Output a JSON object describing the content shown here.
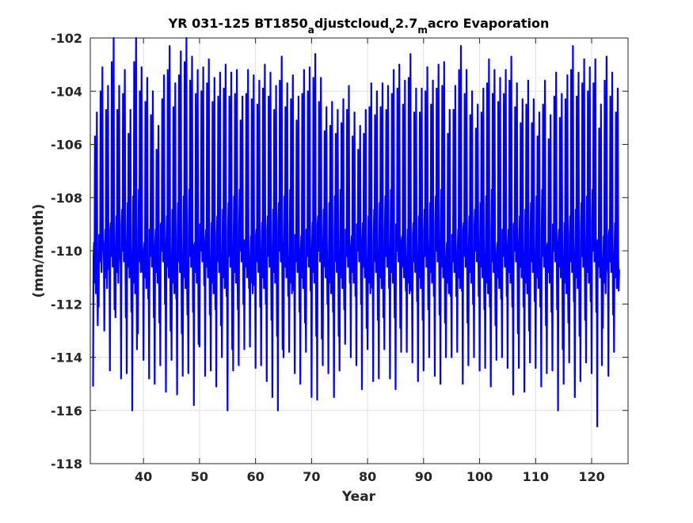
{
  "chart_data": {
    "type": "line",
    "title_parts": [
      {
        "text": "YR 031-125 BT1850",
        "sub": false
      },
      {
        "text": "a",
        "sub": true
      },
      {
        "text": "djustcloud",
        "sub": false
      },
      {
        "text": "v",
        "sub": true
      },
      {
        "text": "2.7",
        "sub": false
      },
      {
        "text": "m",
        "sub": true
      },
      {
        "text": "acro Evaporation",
        "sub": false
      }
    ],
    "xlabel": "Year",
    "ylabel": "(mm/month)",
    "xlim": [
      30.5,
      126.5
    ],
    "ylim": [
      -118,
      -102
    ],
    "xticks": [
      40,
      50,
      60,
      70,
      80,
      90,
      100,
      110,
      120
    ],
    "yticks": [
      -118,
      -116,
      -114,
      -112,
      -110,
      -108,
      -106,
      -104,
      -102
    ],
    "grid": true,
    "line_color": "#0000ff",
    "series": [
      {
        "x_start": 31.0,
        "x_step": 0.083333,
        "cycle_peaks": [
          -105.7,
          -104.0,
          -104.7,
          -102.9,
          -104.7,
          -104.1,
          -105.6,
          -102.9,
          -104.0,
          -104.4,
          -104.9,
          -106.2,
          -104.3,
          -103.2,
          -104.6,
          -103.4,
          -102.9,
          -103.6,
          -104.1,
          -104.0,
          -103.7,
          -104.4,
          -104.2,
          -103.9,
          -104.2,
          -104.1,
          -105.1,
          -104.1,
          -104.3,
          -104.5,
          -103.9,
          -104.2,
          -104.7,
          -103.6,
          -104.6,
          -104.3,
          -105.1,
          -104.1,
          -104.0,
          -103.5,
          -104.4,
          -105.5,
          -105.3,
          -105.6,
          -105.2,
          -104.7,
          -105.7,
          -106.2,
          -105.6,
          -104.6,
          -104.9,
          -104.6,
          -104.7,
          -104.1,
          -103.9,
          -104.5,
          -103.5,
          -104.8,
          -104.8,
          -104.0,
          -104.5,
          -103.9,
          -103.8,
          -105.6,
          -104.7,
          -103.2,
          -104.1,
          -104.9,
          -105.4,
          -104.8,
          -103.7,
          -104.1,
          -104.4,
          -104.1,
          -103.6,
          -104.6,
          -105.2,
          -104.5,
          -105.2,
          -105.7,
          -104.5,
          -105.8,
          -104.2,
          -105.0,
          -104.3,
          -103.2,
          -104.2,
          -103.7,
          -104.0,
          -103.7,
          -105.4,
          -103.6,
          -104.2,
          -104.8
        ],
        "cycle_troughs": [
          -115.1,
          -112.1,
          -113.0,
          -114.5,
          -112.5,
          -114.8,
          -114.6,
          -116.0,
          -113.1,
          -114.1,
          -114.8,
          -115.0,
          -114.3,
          -115.3,
          -114.1,
          -115.4,
          -114.7,
          -114.6,
          -115.8,
          -113.6,
          -114.7,
          -114.5,
          -115.1,
          -114.0,
          -116.0,
          -114.5,
          -114.3,
          -113.7,
          -113.6,
          -114.4,
          -114.3,
          -114.9,
          -115.5,
          -116.0,
          -114.0,
          -113.8,
          -114.6,
          -115.0,
          -113.8,
          -115.5,
          -115.6,
          -114.3,
          -114.6,
          -115.5,
          -114.5,
          -113.5,
          -114.0,
          -114.3,
          -115.2,
          -113.7,
          -114.9,
          -114.8,
          -113.7,
          -114.8,
          -115.2,
          -113.8,
          -113.8,
          -114.2,
          -114.9,
          -114.5,
          -114.0,
          -114.7,
          -115.0,
          -114.0,
          -114.0,
          -113.8,
          -115.0,
          -114.3,
          -114.0,
          -114.5,
          -114.4,
          -115.1,
          -114.1,
          -114.0,
          -114.4,
          -115.4,
          -114.4,
          -115.3,
          -114.2,
          -114.4,
          -115.1,
          -114.6,
          -114.5,
          -116.0,
          -115.0,
          -114.2,
          -115.5,
          -114.9,
          -114.2,
          -114.6,
          -116.6,
          -112.9,
          -114.7,
          -113.8
        ],
        "secondary_level": -108.7,
        "mean_level": -110.0
      }
    ]
  }
}
